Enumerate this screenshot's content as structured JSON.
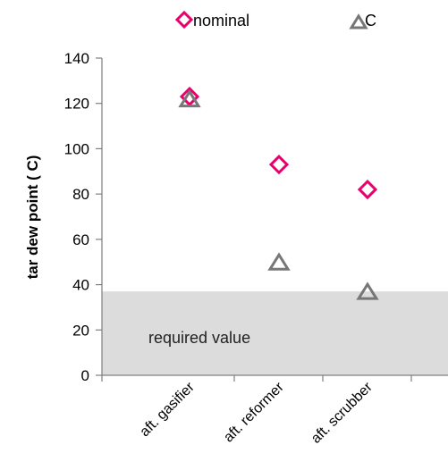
{
  "chart_data": {
    "type": "scatter",
    "categories": [
      "aft. gasifier",
      "aft. reformer",
      "aft. scrubber"
    ],
    "series": [
      {
        "name": "nominal",
        "marker": "diamond",
        "color": "#e8006e",
        "values": [
          123,
          93,
          82
        ]
      },
      {
        "name": "C",
        "marker": "triangle",
        "color": "#777777",
        "values": [
          122,
          50,
          37
        ]
      }
    ],
    "ylabel": "tar dew point ( C)",
    "ylim": [
      0,
      140
    ],
    "yticks": [
      0,
      20,
      40,
      60,
      80,
      100,
      120,
      140
    ],
    "grid": false,
    "legend": "top",
    "shaded_region": {
      "from": 0,
      "to": 37,
      "color": "#dcdcdc",
      "label": "required value"
    }
  }
}
